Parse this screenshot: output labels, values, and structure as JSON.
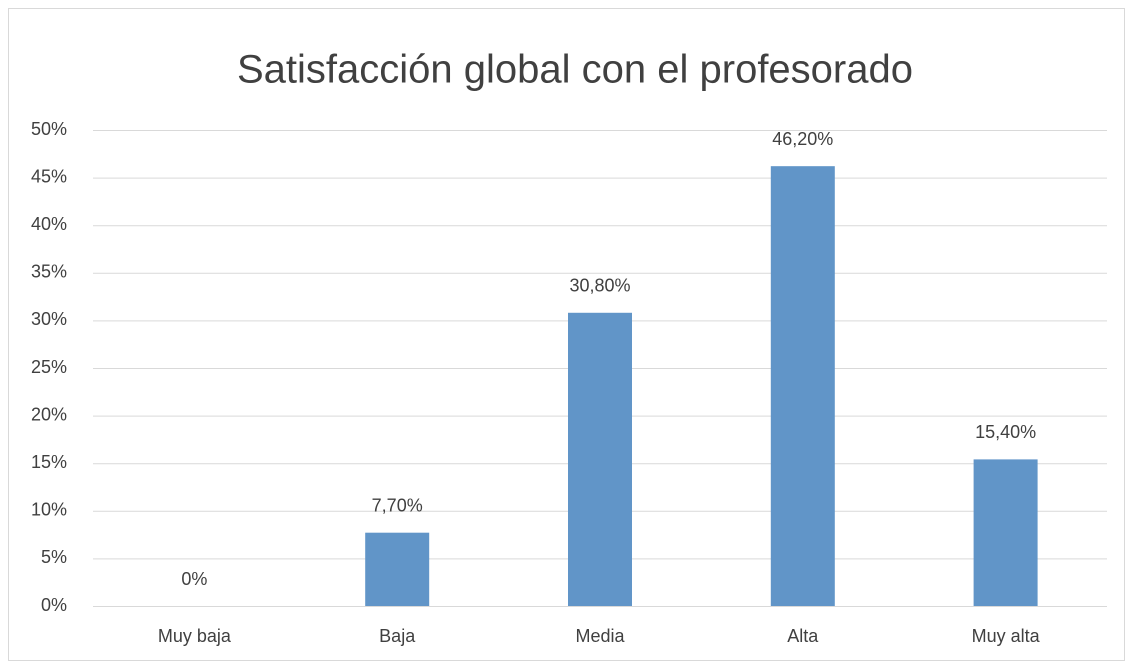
{
  "chart_data": {
    "type": "bar",
    "title": "Satisfacción global con el profesorado",
    "categories": [
      "Muy baja",
      "Baja",
      "Media",
      "Alta",
      "Muy alta"
    ],
    "values": [
      0,
      7.7,
      30.8,
      46.2,
      15.4
    ],
    "value_labels": [
      "0%",
      "7,70%",
      "30,80%",
      "46,20%",
      "15,40%"
    ],
    "color": "#6195c8",
    "ylim": [
      0,
      50
    ],
    "yticks": [
      {
        "value": 0,
        "label": "0%"
      },
      {
        "value": 5,
        "label": "5%"
      },
      {
        "value": 10,
        "label": "10%"
      },
      {
        "value": 15,
        "label": "15%"
      },
      {
        "value": 20,
        "label": "20%"
      },
      {
        "value": 25,
        "label": "25%"
      },
      {
        "value": 30,
        "label": "30%"
      },
      {
        "value": 35,
        "label": "35%"
      },
      {
        "value": 40,
        "label": "40%"
      },
      {
        "value": 45,
        "label": "45%"
      },
      {
        "value": 50,
        "label": "50%"
      }
    ],
    "grid": true
  }
}
